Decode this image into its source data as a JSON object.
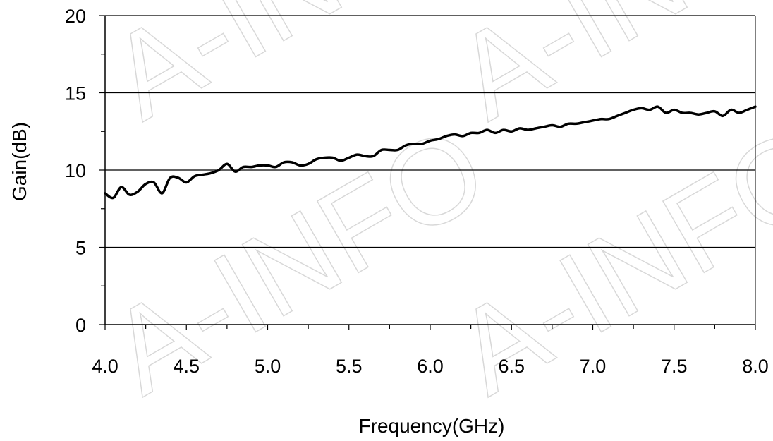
{
  "watermark": "A-INFO",
  "chart_data": {
    "type": "line",
    "xlabel": "Frequency(GHz)",
    "ylabel": "Gain(dB)",
    "xlim": [
      4.0,
      8.0
    ],
    "ylim": [
      0,
      20
    ],
    "x_ticks": [
      "4.0",
      "4.5",
      "5.0",
      "5.5",
      "6.0",
      "6.5",
      "7.0",
      "7.5",
      "8.0"
    ],
    "y_ticks": [
      "0",
      "5",
      "10",
      "15",
      "20"
    ],
    "grid": "horizontal major",
    "line_color": "#000000",
    "series": [
      {
        "x": [
          4.0,
          4.05,
          4.1,
          4.15,
          4.2,
          4.25,
          4.3,
          4.35,
          4.4,
          4.45,
          4.5,
          4.55,
          4.6,
          4.65,
          4.7,
          4.75,
          4.8,
          4.85,
          4.9,
          4.95,
          5.0,
          5.05,
          5.1,
          5.15,
          5.2,
          5.25,
          5.3,
          5.35,
          5.4,
          5.45,
          5.5,
          5.55,
          5.6,
          5.65,
          5.7,
          5.75,
          5.8,
          5.85,
          5.9,
          5.95,
          6.0,
          6.05,
          6.1,
          6.15,
          6.2,
          6.25,
          6.3,
          6.35,
          6.4,
          6.45,
          6.5,
          6.55,
          6.6,
          6.65,
          6.7,
          6.75,
          6.8,
          6.85,
          6.9,
          6.95,
          7.0,
          7.05,
          7.1,
          7.15,
          7.2,
          7.25,
          7.3,
          7.35,
          7.4,
          7.45,
          7.5,
          7.55,
          7.6,
          7.65,
          7.7,
          7.75,
          7.8,
          7.85,
          7.9,
          7.95,
          8.0
        ],
        "values": [
          8.5,
          8.2,
          8.9,
          8.4,
          8.6,
          9.1,
          9.2,
          8.5,
          9.5,
          9.5,
          9.2,
          9.6,
          9.7,
          9.8,
          10.0,
          10.4,
          9.9,
          10.2,
          10.2,
          10.3,
          10.3,
          10.2,
          10.5,
          10.5,
          10.3,
          10.4,
          10.7,
          10.8,
          10.8,
          10.6,
          10.8,
          11.0,
          10.9,
          10.9,
          11.3,
          11.3,
          11.3,
          11.6,
          11.7,
          11.7,
          11.9,
          12.0,
          12.2,
          12.3,
          12.2,
          12.4,
          12.4,
          12.6,
          12.4,
          12.6,
          12.5,
          12.7,
          12.6,
          12.7,
          12.8,
          12.9,
          12.8,
          13.0,
          13.0,
          13.1,
          13.2,
          13.3,
          13.3,
          13.5,
          13.7,
          13.9,
          14.0,
          13.9,
          14.1,
          13.7,
          13.9,
          13.7,
          13.7,
          13.6,
          13.7,
          13.8,
          13.5,
          13.9,
          13.7,
          13.9,
          14.1
        ]
      }
    ]
  }
}
